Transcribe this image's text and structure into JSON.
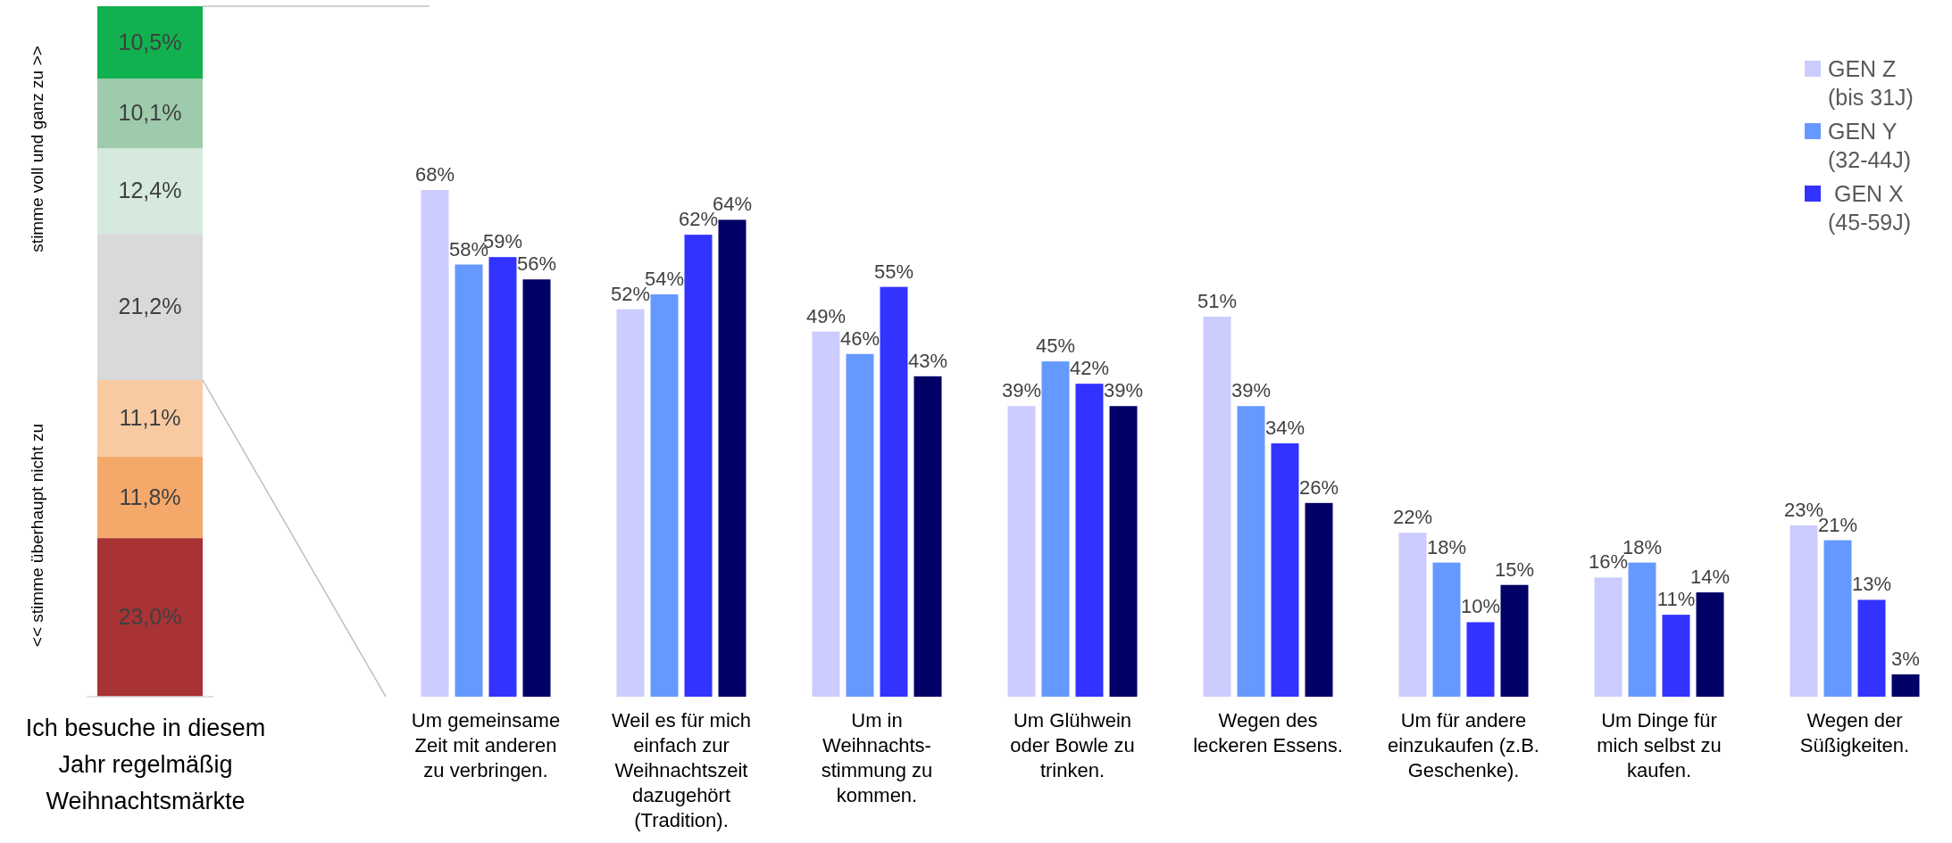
{
  "chart_data": [
    {
      "type": "bar",
      "stacked": true,
      "categories": [
        null
      ],
      "xlabel": "Ich besuche in diesem\nJahr regelmäßig\nWeihnachtsmärkte",
      "annotations": [
        "stimme voll und ganz zu >>",
        "<< stimme überhaupt nicht zu"
      ],
      "series": [
        {
          "color": "#a83234",
          "values": [
            23.0
          ],
          "value_labels": [
            "23,0%"
          ]
        },
        {
          "color": "#f4a96b",
          "values": [
            11.8
          ],
          "value_labels": [
            "11,8%"
          ]
        },
        {
          "color": "#f8caa2",
          "values": [
            11.1
          ],
          "value_labels": [
            "11,1%"
          ]
        },
        {
          "color": "#d9d9d9",
          "values": [
            21.2
          ],
          "value_labels": [
            "21,2%"
          ]
        },
        {
          "color": "#d5eadd",
          "values": [
            12.4
          ],
          "value_labels": [
            "12,4%"
          ]
        },
        {
          "color": "#9fcbad",
          "values": [
            10.1
          ],
          "value_labels": [
            "10,1%"
          ]
        },
        {
          "color": "#12b14f",
          "values": [
            10.5
          ],
          "value_labels": [
            "10,5%"
          ]
        }
      ]
    },
    {
      "type": "bar",
      "legend": "top right",
      "categories": [
        "Um gemeinsame\nZeit mit anderen\nzu verbringen.",
        "Weil es für mich\neinfach zur\nWeihnachtszeit\ndazugehört\n(Tradition).",
        "Um in\nWeihnachts-\nstimmung zu\nkommen.",
        "Um Glühwein\noder Bowle zu\ntrinken.",
        "Wegen des\nleckeren Essens.",
        "Um für andere\neinzukaufen (z.B.\nGeschenke).",
        "Um Dinge für\nmich selbst zu\nkaufen.",
        "Wegen der\nSüßigkeiten."
      ],
      "series": [
        {
          "name": "GEN Z\n(bis 31J)",
          "color": "#ccccff",
          "values": [
            68,
            52,
            49,
            39,
            51,
            22,
            16,
            23
          ],
          "value_labels": [
            "68%",
            "52%",
            "49%",
            "39%",
            "51%",
            "22%",
            "16%",
            "23%"
          ]
        },
        {
          "name": "GEN Y\n(32-44J)",
          "color": "#6699ff",
          "values": [
            58,
            54,
            46,
            45,
            39,
            18,
            18,
            21
          ],
          "value_labels": [
            "58%",
            "54%",
            "46%",
            "45%",
            "39%",
            "18%",
            "18%",
            "21%"
          ]
        },
        {
          "name": " GEN X\n(45-59J)",
          "color": "#3333ff",
          "values": [
            59,
            62,
            55,
            42,
            34,
            10,
            11,
            13
          ],
          "value_labels": [
            "59%",
            "62%",
            "55%",
            "42%",
            "34%",
            "10%",
            "11%",
            "13%"
          ]
        },
        {
          "color": "#000066",
          "values": [
            56,
            64,
            43,
            39,
            26,
            15,
            14,
            3
          ],
          "value_labels": [
            "56%",
            "64%",
            "43%",
            "39%",
            "26%",
            "15%",
            "14%",
            "3%"
          ]
        }
      ]
    }
  ]
}
